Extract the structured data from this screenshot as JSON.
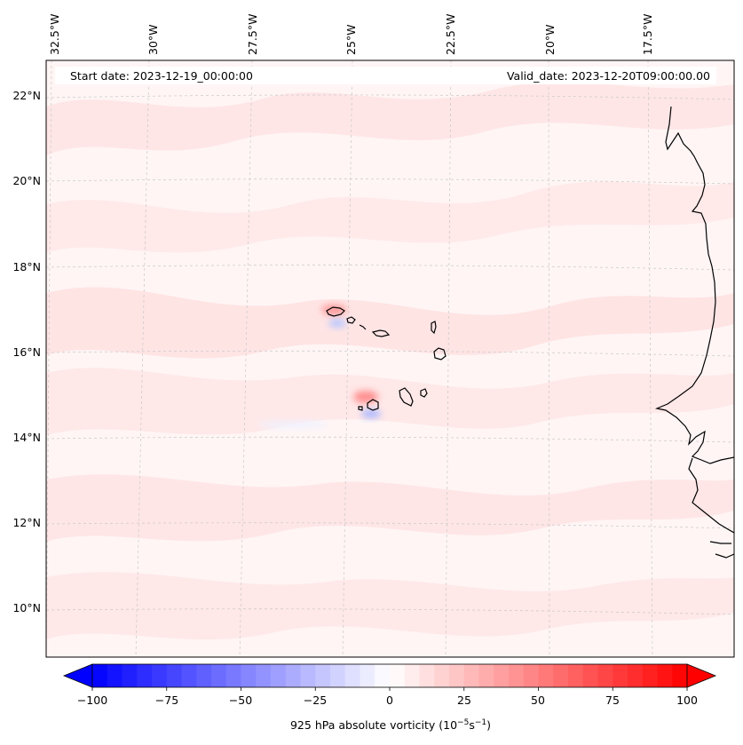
{
  "map": {
    "start_date": "Start date: 2023-12-19_00:00:00",
    "valid_date": "Valid_date: 2023-12-20T09:00:00.00",
    "lon_labels": [
      "32.5°W",
      "30°W",
      "27.5°W",
      "25°W",
      "22.5°W",
      "20°W",
      "17.5°W"
    ],
    "lat_labels": [
      "22°N",
      "20°N",
      "18°N",
      "16°N",
      "14°N",
      "12°N",
      "10°N"
    ],
    "field": "925 hPa absolute vorticity",
    "gridlines": true
  },
  "colorbar": {
    "ticks": [
      "−100",
      "−75",
      "−50",
      "−25",
      "0",
      "25",
      "50",
      "75",
      "100"
    ],
    "label_prefix": "925 hPa absolute vorticity (10",
    "label_exp1": "−5",
    "label_mid": "s",
    "label_exp2": "−1",
    "label_suffix": ")",
    "min": -100,
    "max": 100,
    "colormap": "bwr",
    "low_color": "#0000ff",
    "mid_color": "#ffffff",
    "high_color": "#ff0000",
    "extend": "both"
  }
}
